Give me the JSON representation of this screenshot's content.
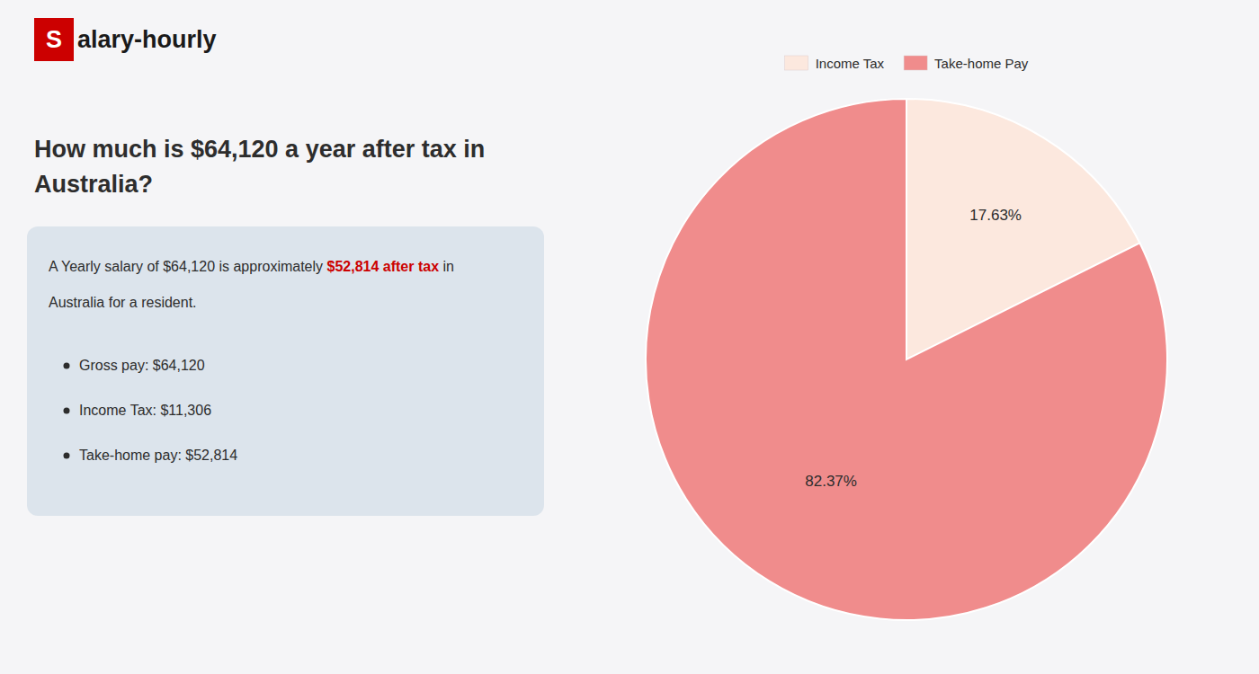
{
  "chart_data": {
    "type": "pie",
    "title": "How much is $64,120 a year after tax in Australia?",
    "annotations": [
      {
        "text": "S",
        "color": "#cc0000"
      },
      {
        "text": "alary-hourly"
      },
      {
        "text": "A Yearly salary of $64,120 is approximately "
      },
      {
        "text": "$52,814 after tax",
        "color": "#cc0000"
      },
      {
        "text": " in"
      },
      {
        "text": "Australia for a resident."
      },
      {
        "text": "Gross pay: $64,120"
      },
      {
        "text": "Income Tax: $11,306"
      },
      {
        "text": "Take-home pay: $52,814"
      }
    ],
    "categories": [
      "Income Tax",
      "Take-home Pay"
    ],
    "values": [
      17.63,
      82.37
    ],
    "value_labels": [
      "17.63%",
      "82.37%"
    ],
    "colors": [
      "#fce8de",
      "#f08c8c"
    ],
    "data_labels": true,
    "legend": "top"
  }
}
